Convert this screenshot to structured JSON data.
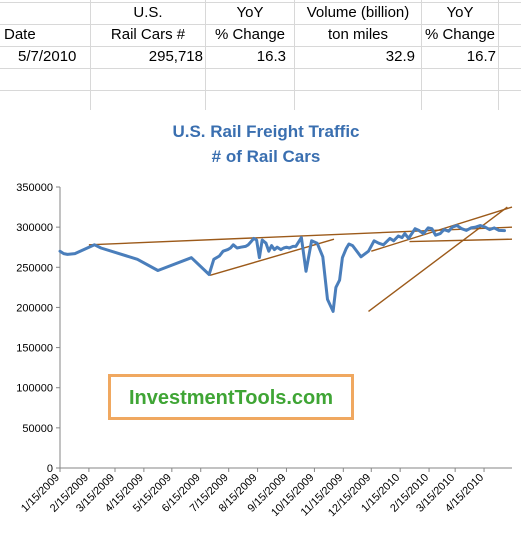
{
  "table": {
    "headers_row1": [
      "",
      "U.S.",
      "YoY",
      "Volume (billion)",
      "YoY"
    ],
    "headers_row2": [
      "Date",
      "Rail Cars #",
      "% Change",
      "ton miles",
      "% Change"
    ],
    "row": [
      "5/7/2010",
      "295,718",
      "16.3",
      "32.9",
      "16.7"
    ]
  },
  "watermark": "InvestmentTools.com",
  "colors": {
    "series": "#4a7ebb",
    "trendlines": "#9c5a1a",
    "title": "#3a6fb0",
    "watermark_border": "#f0a860",
    "watermark_text": "#3fa535"
  },
  "chart_data": {
    "type": "line",
    "title": "U.S. Rail Freight Traffic",
    "subtitle": "# of Rail Cars",
    "ylim": [
      0,
      350000
    ],
    "yticks": [
      0,
      50000,
      100000,
      150000,
      200000,
      250000,
      300000,
      350000
    ],
    "ytick_labels": [
      "0",
      "50000",
      "100000",
      "150000",
      "200000",
      "250000",
      "300000",
      "350000"
    ],
    "xlim": [
      "2009-01-15",
      "2010-05-15"
    ],
    "xtick_labels": [
      "1/15/2009",
      "2/15/2009",
      "3/15/2009",
      "4/15/2009",
      "5/15/2009",
      "6/15/2009",
      "7/15/2009",
      "8/15/2009",
      "9/15/2009",
      "10/15/2009",
      "11/15/2009",
      "12/15/2009",
      "1/15/2010",
      "2/15/2010",
      "3/15/2010",
      "4/15/2010"
    ],
    "grid": false,
    "legend": "none",
    "series": [
      {
        "x": [
          "2009-01-15",
          "2009-01-19",
          "2009-01-23",
          "2009-01-31",
          "2009-02-21",
          "2009-02-28",
          "2009-04-08",
          "2009-04-30",
          "2009-06-05",
          "2009-06-24",
          "2009-06-29",
          "2009-07-05",
          "2009-07-09",
          "2009-07-14",
          "2009-07-17",
          "2009-07-20",
          "2009-07-24",
          "2009-07-28",
          "2009-08-02",
          "2009-08-05",
          "2009-08-08",
          "2009-08-11",
          "2009-08-14",
          "2009-08-17",
          "2009-08-20",
          "2009-08-24",
          "2009-08-27",
          "2009-08-30",
          "2009-09-02",
          "2009-09-05",
          "2009-09-09",
          "2009-09-12",
          "2009-09-15",
          "2009-09-18",
          "2009-09-22",
          "2009-09-25",
          "2009-10-01",
          "2009-10-06",
          "2009-10-12",
          "2009-10-18",
          "2009-10-24",
          "2009-10-29",
          "2009-11-04",
          "2009-11-07",
          "2009-11-11",
          "2009-11-14",
          "2009-11-18",
          "2009-11-21",
          "2009-11-25",
          "2009-12-04",
          "2009-12-12",
          "2009-12-18",
          "2009-12-23",
          "2009-12-28",
          "2010-01-04",
          "2010-01-08",
          "2010-01-13",
          "2010-01-17",
          "2010-01-20",
          "2010-01-24",
          "2010-01-27",
          "2010-01-31",
          "2010-02-04",
          "2010-02-09",
          "2010-02-14",
          "2010-02-18",
          "2010-02-22",
          "2010-02-27",
          "2010-03-03",
          "2010-03-08",
          "2010-03-12",
          "2010-03-17",
          "2010-03-22",
          "2010-03-27",
          "2010-04-01",
          "2010-04-06",
          "2010-04-11",
          "2010-04-16",
          "2010-04-21",
          "2010-04-26",
          "2010-05-01",
          "2010-05-07"
        ],
        "y": [
          270000,
          267000,
          266000,
          267000,
          278000,
          274000,
          260000,
          246000,
          262000,
          241000,
          260000,
          264000,
          270000,
          272000,
          274000,
          278000,
          274000,
          275000,
          276000,
          278000,
          282000,
          286000,
          284000,
          262000,
          284000,
          280000,
          270000,
          277000,
          272000,
          275000,
          272000,
          274000,
          275000,
          274000,
          276000,
          276000,
          287000,
          245000,
          283000,
          280000,
          263000,
          210000,
          195000,
          225000,
          234000,
          262000,
          273000,
          279000,
          277000,
          263000,
          270000,
          283000,
          280000,
          278000,
          286000,
          283000,
          289000,
          287000,
          292000,
          286000,
          291000,
          298000,
          296000,
          292000,
          299000,
          298000,
          290000,
          292000,
          297000,
          295000,
          300000,
          302000,
          298000,
          296000,
          299000,
          300000,
          302000,
          300000,
          297000,
          299000,
          296000,
          295718
        ]
      }
    ],
    "trendlines": [
      {
        "x": [
          "2009-02-15",
          "2010-05-15"
        ],
        "y": [
          278000,
          300000
        ]
      },
      {
        "x": [
          "2009-06-25",
          "2009-11-05"
        ],
        "y": [
          240000,
          285000
        ]
      },
      {
        "x": [
          "2009-12-15",
          "2010-05-15"
        ],
        "y": [
          270000,
          325000
        ]
      },
      {
        "x": [
          "2009-12-12",
          "2010-05-10"
        ],
        "y": [
          195000,
          325000
        ]
      },
      {
        "x": [
          "2010-01-25",
          "2010-05-15"
        ],
        "y": [
          282000,
          285000
        ]
      }
    ]
  }
}
